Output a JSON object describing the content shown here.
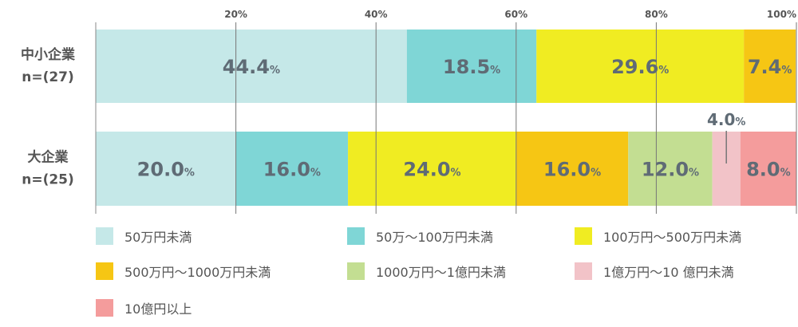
{
  "chart_data": {
    "type": "bar",
    "orientation": "horizontal",
    "stacked": true,
    "categories": [
      {
        "name": "中小企業",
        "n": "n=(27)"
      },
      {
        "name": "大企業",
        "n": "n=(25)"
      }
    ],
    "series": [
      {
        "name": "50万円未満",
        "color": "#c5e8e8",
        "values": [
          44.4,
          20.0
        ]
      },
      {
        "name": "50万～100万円未満",
        "color": "#7fd6d6",
        "values": [
          18.5,
          16.0
        ]
      },
      {
        "name": "100万円～500万円未満",
        "color": "#f0ec22",
        "values": [
          29.6,
          24.0
        ]
      },
      {
        "name": "500万円～1000万円未満",
        "color": "#f6c614",
        "values": [
          7.4,
          16.0
        ]
      },
      {
        "name": "1000万円～1億円未満",
        "color": "#c3de92",
        "values": [
          0,
          12.0
        ]
      },
      {
        "name": "1億万円～10 億円未満",
        "color": "#f2c3c8",
        "values": [
          0,
          4.0
        ]
      },
      {
        "name": "10億円以上",
        "color": "#f49c9c",
        "values": [
          0,
          8.0
        ]
      }
    ],
    "labels": [
      [
        "44.4",
        "18.5",
        "29.6",
        "7.4",
        "",
        "",
        ""
      ],
      [
        "20.0",
        "16.0",
        "24.0",
        "16.0",
        "12.0",
        "4.0",
        "8.0"
      ]
    ],
    "unit": "%",
    "xticks": [
      20,
      40,
      60,
      80,
      100
    ],
    "xlim": [
      0,
      100
    ],
    "grid": true,
    "legend_position": "bottom"
  }
}
